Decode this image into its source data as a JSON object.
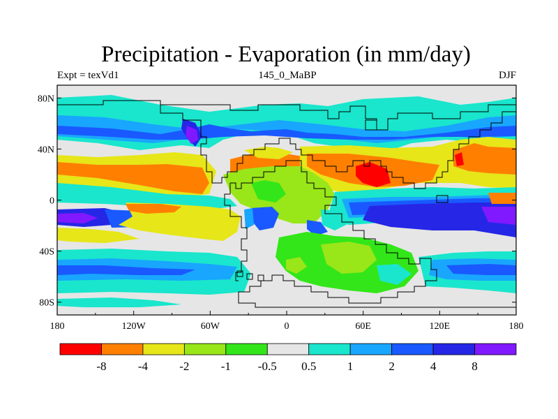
{
  "title": "Precipitation - Evaporation (in mm/day)",
  "subtitle": "145_0_MaBP",
  "experiment": "Expt = texVd1",
  "season": "DJF",
  "colors": {
    "lt_-8": "#ff0000",
    "-8_-4": "#ff8000",
    "-4_-2": "#e6e619",
    "-2_-1": "#99e619",
    "-1_-0.5": "#33e619",
    "-0.5_0.5": "#e6e6e6",
    "0.5_1": "#19e6cc",
    "1_2": "#19a6ff",
    "2_4": "#1959ff",
    "4_8": "#2626e6",
    "gt_8": "#8019ff"
  },
  "map": {
    "projection": "cylindrical-equidistant",
    "lon_range": [
      -180,
      180
    ],
    "lat_range": [
      -90,
      90
    ],
    "lon_ticks": [
      "180",
      "120W",
      "60W",
      "0",
      "60E",
      "120E",
      "180"
    ],
    "lat_ticks": [
      "80N",
      "40N",
      "0",
      "40S",
      "80S"
    ],
    "coastline_color": "#000000"
  },
  "colorbar": {
    "labels": [
      "-8",
      "-4",
      "-2",
      "-1",
      "-0.5",
      "0.5",
      "1",
      "2",
      "4",
      "8"
    ],
    "colors": [
      "#ff0000",
      "#ff8000",
      "#e6e619",
      "#99e619",
      "#33e619",
      "#e6e6e6",
      "#19e6cc",
      "#19a6ff",
      "#1959ff",
      "#2626e6",
      "#8019ff"
    ]
  }
}
